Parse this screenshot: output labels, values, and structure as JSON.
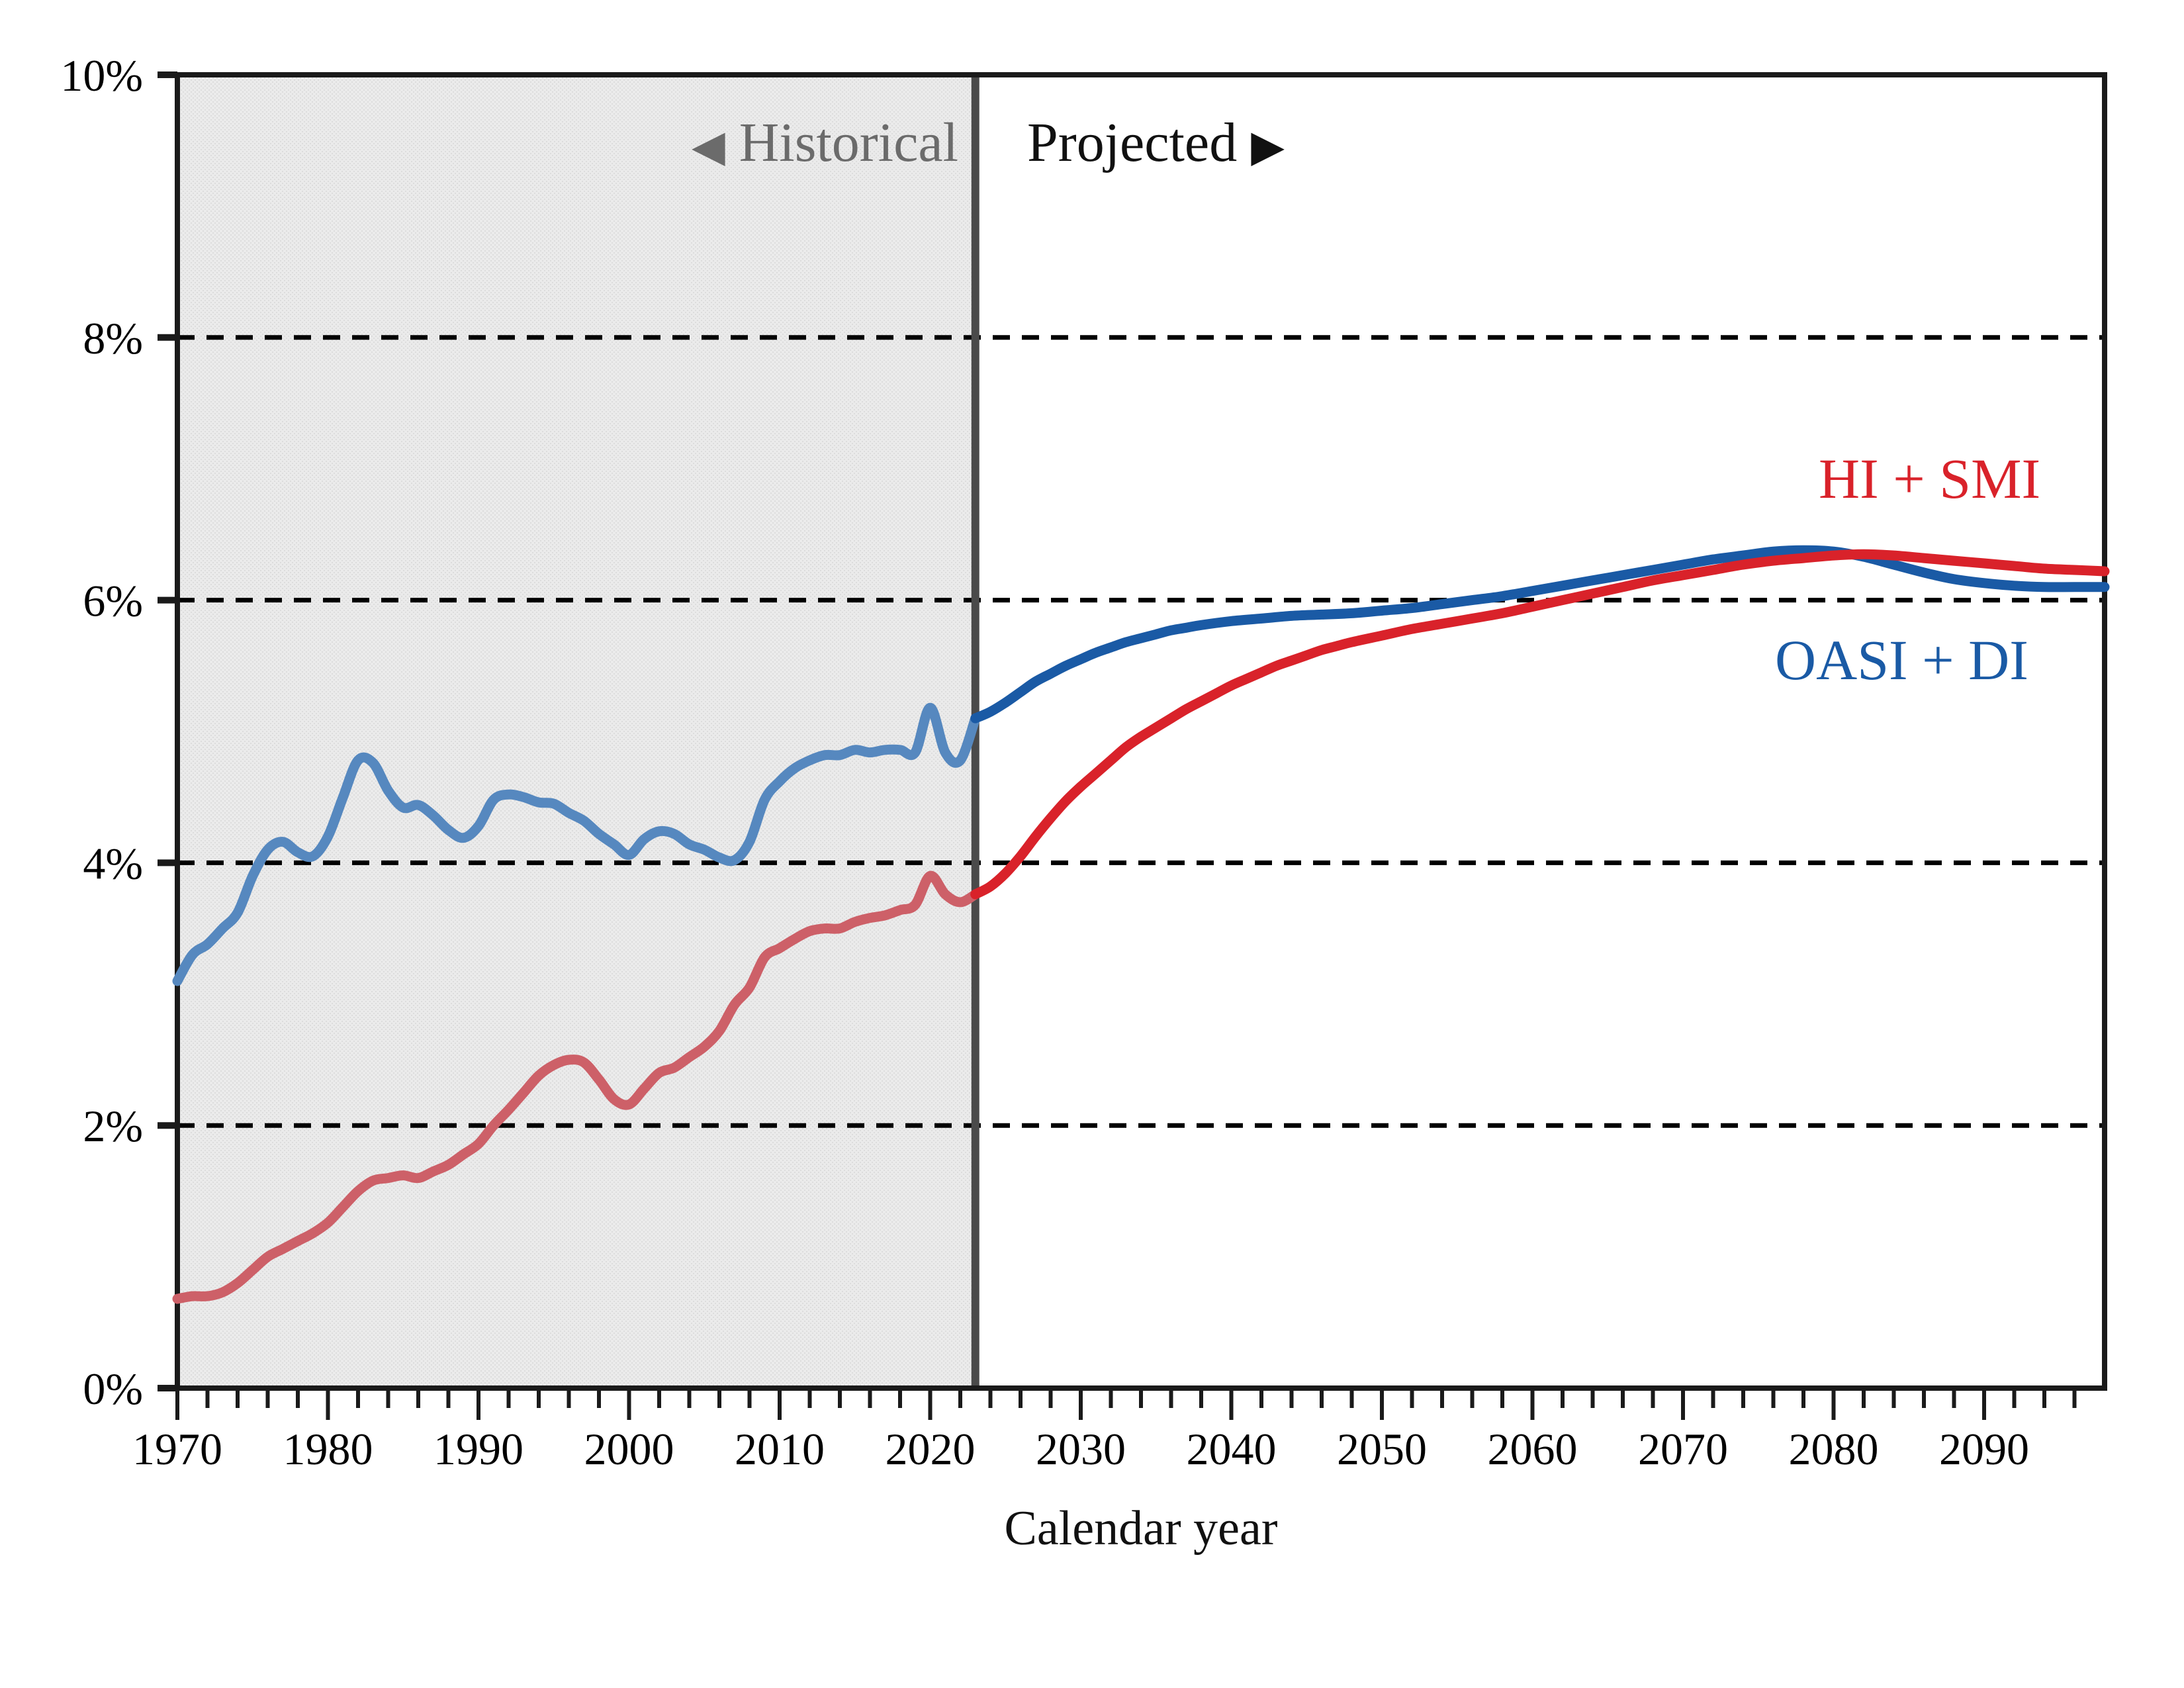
{
  "zones": {
    "historical_arrow": "◀",
    "historical_label": "Historical",
    "projected_label": "Projected",
    "projected_arrow": "▶"
  },
  "legend": {
    "hi_smi_label": "HI + SMI",
    "oasi_di_label": "OASI + DI"
  },
  "axes": {
    "x_title": "Calendar year"
  },
  "colors": {
    "projected_blue": "#1a5aa5",
    "projected_red": "#d9222a",
    "historical_blue": "#5688bf",
    "historical_red": "#cd6068",
    "historical_region_fill": "#ebebeb",
    "historical_region_dot": "#dcdcdc",
    "divider_gray": "#4a4a4a",
    "frame_black": "#1a1a1a",
    "header_gray": "#6b6b6b",
    "gridline_black": "#000000"
  },
  "chart_data": {
    "type": "line",
    "title": "",
    "xlabel": "Calendar year",
    "ylabel": "",
    "xlim": [
      1970,
      2098
    ],
    "ylim": [
      0,
      10
    ],
    "grid": "horizontal-dashed",
    "gridlines_at": [
      2,
      4,
      6,
      8
    ],
    "divider_year": 2023,
    "historical_region": [
      1970,
      2023
    ],
    "legend_position": "inline-right",
    "y_axis": {
      "tick_values": [
        0,
        2,
        4,
        6,
        8,
        10
      ],
      "tick_labels": [
        "0%",
        "2%",
        "4%",
        "6%",
        "8%",
        "10%"
      ]
    },
    "x_axis": {
      "label_tick_values": [
        1970,
        1980,
        1990,
        2000,
        2010,
        2020,
        2030,
        2040,
        2050,
        2060,
        2070,
        2080,
        2090
      ],
      "label_ticks": [
        "1970",
        "1980",
        "1990",
        "2000",
        "2010",
        "2020",
        "2030",
        "2040",
        "2050",
        "2060",
        "2070",
        "2080",
        "2090"
      ],
      "minor_tick_step_years": 2
    },
    "units": "percent of GDP",
    "series": [
      {
        "name": "OASI + DI (historical)",
        "color_key": "historical_blue",
        "points": [
          [
            1970,
            3.1
          ],
          [
            1971,
            3.3
          ],
          [
            1972,
            3.38
          ],
          [
            1973,
            3.5
          ],
          [
            1974,
            3.62
          ],
          [
            1975,
            3.9
          ],
          [
            1976,
            4.1
          ],
          [
            1977,
            4.16
          ],
          [
            1978,
            4.08
          ],
          [
            1979,
            4.05
          ],
          [
            1980,
            4.2
          ],
          [
            1981,
            4.5
          ],
          [
            1982,
            4.78
          ],
          [
            1983,
            4.76
          ],
          [
            1984,
            4.55
          ],
          [
            1985,
            4.42
          ],
          [
            1986,
            4.44
          ],
          [
            1987,
            4.36
          ],
          [
            1988,
            4.25
          ],
          [
            1989,
            4.19
          ],
          [
            1990,
            4.28
          ],
          [
            1991,
            4.48
          ],
          [
            1992,
            4.52
          ],
          [
            1993,
            4.5
          ],
          [
            1994,
            4.46
          ],
          [
            1995,
            4.45
          ],
          [
            1996,
            4.38
          ],
          [
            1997,
            4.32
          ],
          [
            1998,
            4.22
          ],
          [
            1999,
            4.14
          ],
          [
            2000,
            4.06
          ],
          [
            2001,
            4.18
          ],
          [
            2002,
            4.24
          ],
          [
            2003,
            4.22
          ],
          [
            2004,
            4.14
          ],
          [
            2005,
            4.1
          ],
          [
            2006,
            4.04
          ],
          [
            2007,
            4.02
          ],
          [
            2008,
            4.16
          ],
          [
            2009,
            4.48
          ],
          [
            2010,
            4.62
          ],
          [
            2011,
            4.72
          ],
          [
            2012,
            4.78
          ],
          [
            2013,
            4.82
          ],
          [
            2014,
            4.82
          ],
          [
            2015,
            4.86
          ],
          [
            2016,
            4.84
          ],
          [
            2017,
            4.86
          ],
          [
            2018,
            4.86
          ],
          [
            2019,
            4.84
          ],
          [
            2020,
            5.18
          ],
          [
            2021,
            4.84
          ],
          [
            2022,
            4.78
          ],
          [
            2023,
            5.1
          ]
        ]
      },
      {
        "name": "OASI + DI (projected)",
        "color_key": "projected_blue",
        "points": [
          [
            2023,
            5.1
          ],
          [
            2024,
            5.15
          ],
          [
            2025,
            5.22
          ],
          [
            2026,
            5.3
          ],
          [
            2027,
            5.38
          ],
          [
            2028,
            5.44
          ],
          [
            2029,
            5.5
          ],
          [
            2030,
            5.55
          ],
          [
            2031,
            5.6
          ],
          [
            2032,
            5.64
          ],
          [
            2033,
            5.68
          ],
          [
            2034,
            5.71
          ],
          [
            2035,
            5.74
          ],
          [
            2036,
            5.77
          ],
          [
            2037,
            5.79
          ],
          [
            2038,
            5.81
          ],
          [
            2040,
            5.84
          ],
          [
            2042,
            5.86
          ],
          [
            2044,
            5.88
          ],
          [
            2046,
            5.89
          ],
          [
            2048,
            5.9
          ],
          [
            2050,
            5.92
          ],
          [
            2052,
            5.94
          ],
          [
            2054,
            5.97
          ],
          [
            2056,
            6.0
          ],
          [
            2058,
            6.03
          ],
          [
            2060,
            6.07
          ],
          [
            2062,
            6.11
          ],
          [
            2064,
            6.15
          ],
          [
            2066,
            6.19
          ],
          [
            2068,
            6.23
          ],
          [
            2070,
            6.27
          ],
          [
            2072,
            6.31
          ],
          [
            2074,
            6.34
          ],
          [
            2076,
            6.37
          ],
          [
            2078,
            6.38
          ],
          [
            2080,
            6.37
          ],
          [
            2082,
            6.33
          ],
          [
            2084,
            6.27
          ],
          [
            2086,
            6.21
          ],
          [
            2088,
            6.16
          ],
          [
            2090,
            6.13
          ],
          [
            2092,
            6.11
          ],
          [
            2094,
            6.1
          ],
          [
            2096,
            6.1
          ],
          [
            2098,
            6.1
          ]
        ]
      },
      {
        "name": "HI + SMI (historical)",
        "color_key": "historical_red",
        "points": [
          [
            1970,
            0.68
          ],
          [
            1971,
            0.7
          ],
          [
            1972,
            0.7
          ],
          [
            1973,
            0.73
          ],
          [
            1974,
            0.8
          ],
          [
            1975,
            0.9
          ],
          [
            1976,
            1.0
          ],
          [
            1977,
            1.06
          ],
          [
            1978,
            1.12
          ],
          [
            1979,
            1.18
          ],
          [
            1980,
            1.26
          ],
          [
            1981,
            1.38
          ],
          [
            1982,
            1.5
          ],
          [
            1983,
            1.58
          ],
          [
            1984,
            1.6
          ],
          [
            1985,
            1.62
          ],
          [
            1986,
            1.6
          ],
          [
            1987,
            1.65
          ],
          [
            1988,
            1.7
          ],
          [
            1989,
            1.78
          ],
          [
            1990,
            1.86
          ],
          [
            1991,
            2.0
          ],
          [
            1992,
            2.12
          ],
          [
            1993,
            2.25
          ],
          [
            1994,
            2.38
          ],
          [
            1995,
            2.46
          ],
          [
            1996,
            2.5
          ],
          [
            1997,
            2.48
          ],
          [
            1998,
            2.35
          ],
          [
            1999,
            2.2
          ],
          [
            2000,
            2.16
          ],
          [
            2001,
            2.28
          ],
          [
            2002,
            2.4
          ],
          [
            2003,
            2.44
          ],
          [
            2004,
            2.52
          ],
          [
            2005,
            2.6
          ],
          [
            2006,
            2.72
          ],
          [
            2007,
            2.92
          ],
          [
            2008,
            3.05
          ],
          [
            2009,
            3.28
          ],
          [
            2010,
            3.35
          ],
          [
            2011,
            3.42
          ],
          [
            2012,
            3.48
          ],
          [
            2013,
            3.5
          ],
          [
            2014,
            3.5
          ],
          [
            2015,
            3.55
          ],
          [
            2016,
            3.58
          ],
          [
            2017,
            3.6
          ],
          [
            2018,
            3.64
          ],
          [
            2019,
            3.68
          ],
          [
            2020,
            3.9
          ],
          [
            2021,
            3.76
          ],
          [
            2022,
            3.7
          ],
          [
            2023,
            3.76
          ]
        ]
      },
      {
        "name": "HI + SMI (projected)",
        "color_key": "projected_red",
        "points": [
          [
            2023,
            3.76
          ],
          [
            2024,
            3.82
          ],
          [
            2025,
            3.92
          ],
          [
            2026,
            4.05
          ],
          [
            2027,
            4.2
          ],
          [
            2028,
            4.34
          ],
          [
            2029,
            4.47
          ],
          [
            2030,
            4.58
          ],
          [
            2031,
            4.68
          ],
          [
            2032,
            4.78
          ],
          [
            2033,
            4.88
          ],
          [
            2034,
            4.96
          ],
          [
            2035,
            5.03
          ],
          [
            2036,
            5.1
          ],
          [
            2037,
            5.17
          ],
          [
            2038,
            5.23
          ],
          [
            2039,
            5.29
          ],
          [
            2040,
            5.35
          ],
          [
            2041,
            5.4
          ],
          [
            2042,
            5.45
          ],
          [
            2043,
            5.5
          ],
          [
            2044,
            5.54
          ],
          [
            2045,
            5.58
          ],
          [
            2046,
            5.62
          ],
          [
            2047,
            5.65
          ],
          [
            2048,
            5.68
          ],
          [
            2050,
            5.73
          ],
          [
            2052,
            5.78
          ],
          [
            2054,
            5.82
          ],
          [
            2056,
            5.86
          ],
          [
            2058,
            5.9
          ],
          [
            2060,
            5.95
          ],
          [
            2062,
            6.0
          ],
          [
            2064,
            6.05
          ],
          [
            2066,
            6.1
          ],
          [
            2068,
            6.15
          ],
          [
            2070,
            6.19
          ],
          [
            2072,
            6.23
          ],
          [
            2074,
            6.27
          ],
          [
            2076,
            6.3
          ],
          [
            2078,
            6.32
          ],
          [
            2080,
            6.34
          ],
          [
            2082,
            6.35
          ],
          [
            2084,
            6.34
          ],
          [
            2086,
            6.32
          ],
          [
            2088,
            6.3
          ],
          [
            2090,
            6.28
          ],
          [
            2092,
            6.26
          ],
          [
            2094,
            6.24
          ],
          [
            2096,
            6.23
          ],
          [
            2098,
            6.22
          ]
        ]
      }
    ]
  }
}
